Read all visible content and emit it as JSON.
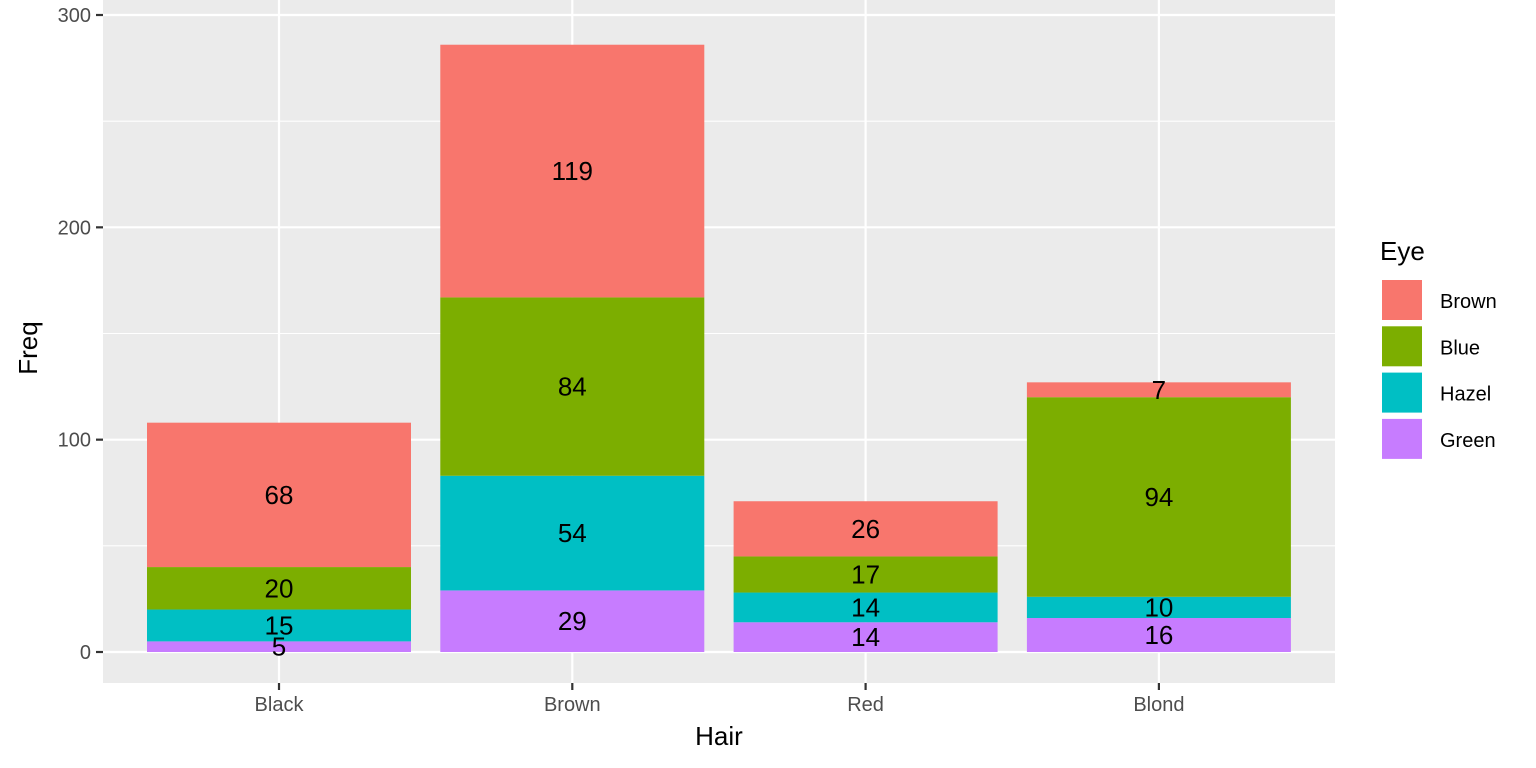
{
  "chart_data": {
    "type": "bar",
    "stacked": true,
    "xlabel": "Hair",
    "ylabel": "Freq",
    "categories": [
      "Black",
      "Brown",
      "Red",
      "Blond"
    ],
    "ylim": [
      -14,
      300
    ],
    "yticks": [
      0,
      100,
      200,
      300
    ],
    "grid": true,
    "legend": {
      "title": "Eye",
      "placement": "right"
    },
    "series": [
      {
        "name": "Brown",
        "color": "#F8766D",
        "values": [
          68,
          119,
          26,
          7
        ]
      },
      {
        "name": "Blue",
        "color": "#7CAE00",
        "values": [
          20,
          84,
          17,
          94
        ]
      },
      {
        "name": "Hazel",
        "color": "#00BFC4",
        "values": [
          15,
          54,
          14,
          10
        ]
      },
      {
        "name": "Green",
        "color": "#C77CFF",
        "values": [
          5,
          29,
          14,
          16
        ]
      }
    ],
    "panel_background": "#EBEBEB",
    "grid_color": "#FFFFFF"
  }
}
